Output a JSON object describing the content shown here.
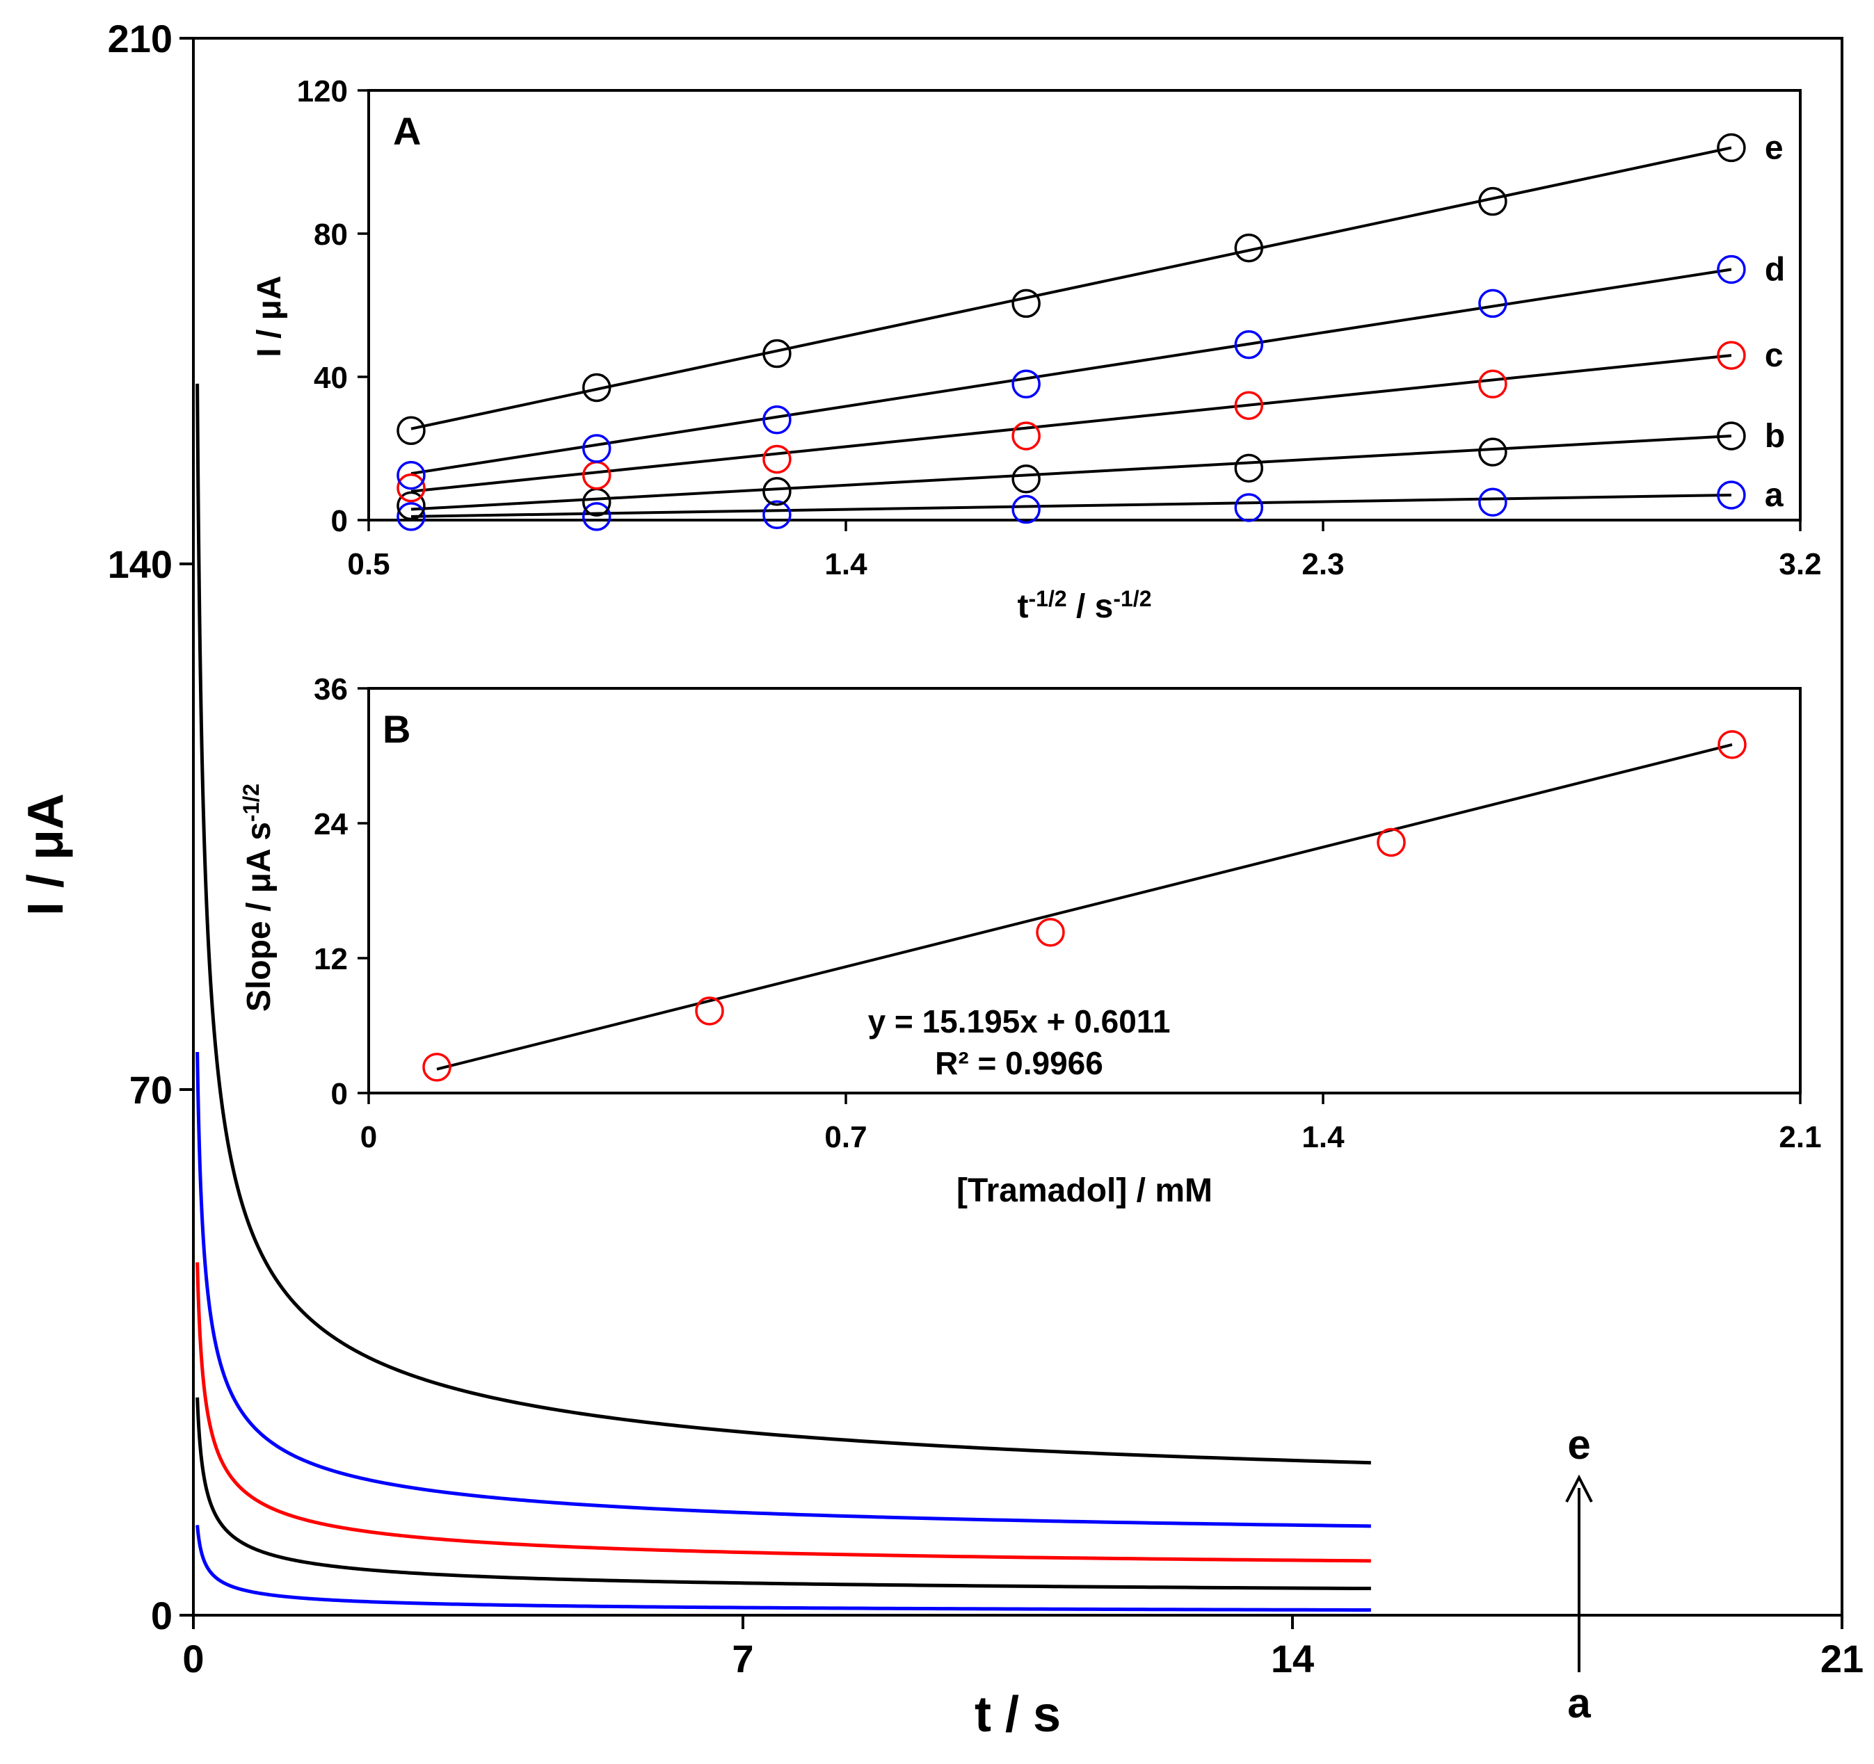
{
  "chart_data": [
    {
      "id": "main",
      "type": "line",
      "title": "",
      "xlabel": "t / s",
      "ylabel": "I / μA",
      "xlim": [
        0,
        21
      ],
      "ylim": [
        0,
        210
      ],
      "xticks": [
        "0",
        "7",
        "14",
        "21"
      ],
      "yticks": [
        "0",
        "70",
        "140",
        "210"
      ],
      "t_end": 15,
      "series": [
        {
          "name": "a",
          "color": "#0000ff",
          "peak": 12.0,
          "plateau": 0.0
        },
        {
          "name": "b",
          "color": "#000000",
          "peak": 29.0,
          "plateau": 2.0
        },
        {
          "name": "c",
          "color": "#ff0000",
          "peak": 47.0,
          "plateau": 4.8
        },
        {
          "name": "d",
          "color": "#0000ff",
          "peak": 75.0,
          "plateau": 8.0
        },
        {
          "name": "e",
          "color": "#000000",
          "peak": 164.0,
          "plateau": 11.5
        }
      ],
      "arrow": {
        "from_label": "a",
        "to_label": "e"
      }
    },
    {
      "id": "inset-A",
      "type": "scatter",
      "panel_label": "A",
      "xlabel_main": "t",
      "xlabel_sup1": "-1/2",
      "xlabel_mid": " / s",
      "xlabel_sup2": "-1/2",
      "ylabel": "I / μA",
      "xlim": [
        0.5,
        3.2
      ],
      "ylim": [
        0,
        120
      ],
      "xticks": [
        "0.5",
        "1.4",
        "2.3",
        "3.2"
      ],
      "yticks": [
        "0",
        "40",
        "80",
        "120"
      ],
      "x": [
        0.58,
        0.93,
        1.27,
        1.74,
        2.16,
        2.62,
        3.07
      ],
      "series": [
        {
          "name": "a",
          "color": "#0000ff",
          "values": [
            1.0,
            1.0,
            1.5,
            3.0,
            3.5,
            5.0,
            7.0
          ],
          "fit": [
            1.0,
            7.0
          ]
        },
        {
          "name": "b",
          "color": "#000000",
          "values": [
            4.0,
            5.0,
            8.0,
            11.5,
            14.5,
            19.0,
            23.5
          ],
          "fit": [
            3.0,
            23.5
          ]
        },
        {
          "name": "c",
          "color": "#ff0000",
          "values": [
            9.0,
            12.5,
            17.0,
            23.5,
            32.0,
            38.0,
            46.0
          ],
          "fit": [
            8.0,
            46.0
          ]
        },
        {
          "name": "d",
          "color": "#0000ff",
          "values": [
            12.5,
            20.0,
            28.0,
            38.0,
            49.0,
            60.5,
            70.0
          ],
          "fit": [
            13.0,
            70.0
          ]
        },
        {
          "name": "e",
          "color": "#000000",
          "values": [
            25.0,
            37.0,
            46.5,
            60.5,
            76.0,
            89.0,
            104.0
          ],
          "fit": [
            25.5,
            104.0
          ]
        }
      ]
    },
    {
      "id": "inset-B",
      "type": "scatter",
      "panel_label": "B",
      "xlabel": "[Tramadol] / mM",
      "ylabel_main": "Slope / μA s",
      "ylabel_sup": "-1/2",
      "xlim": [
        0,
        2.1
      ],
      "ylim": [
        0,
        36
      ],
      "xticks": [
        "0",
        "0.7",
        "1.4",
        "2.1"
      ],
      "yticks": [
        "0",
        "12",
        "24",
        "36"
      ],
      "x": [
        0.1,
        0.5,
        1.0,
        1.5,
        2.0
      ],
      "values": [
        2.3,
        7.3,
        14.3,
        22.3,
        31.0
      ],
      "point_color": "#ff0000",
      "fit": {
        "slope": 15.195,
        "intercept": 0.6011,
        "x_range": [
          0.1,
          2.0
        ]
      },
      "equation": "y = 15.195x  + 0.6011",
      "r2": "R² = 0.9966"
    }
  ]
}
